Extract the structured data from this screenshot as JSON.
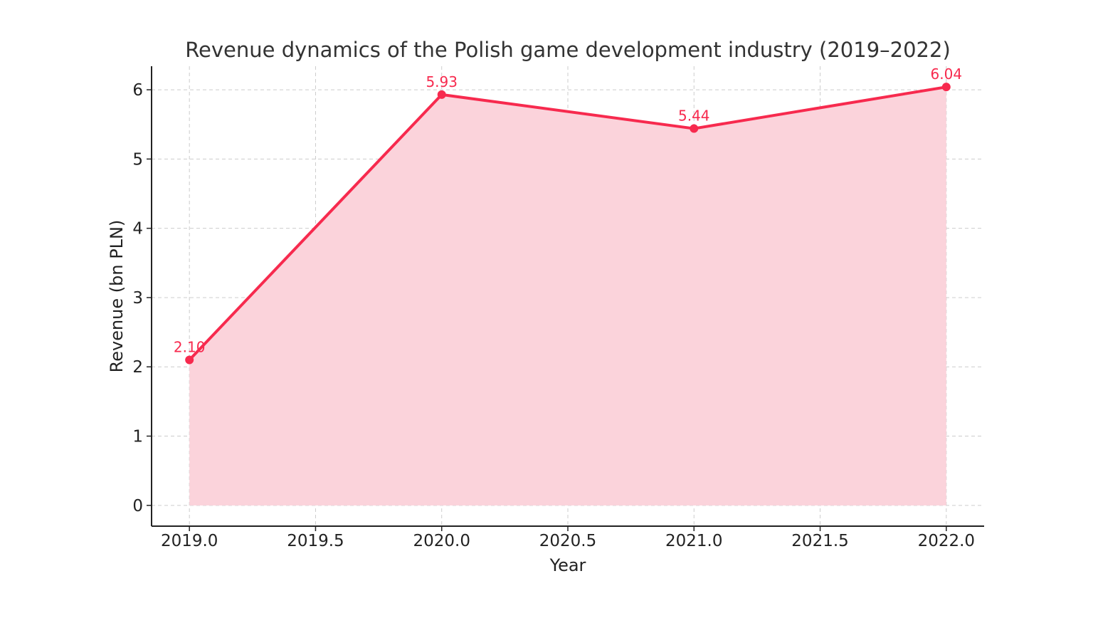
{
  "chart_data": {
    "type": "area",
    "title": "Revenue dynamics of the Polish game development industry (2019–2022)",
    "xlabel": "Year",
    "ylabel": "Revenue (bn PLN)",
    "x": [
      2019,
      2020,
      2021,
      2022
    ],
    "values": [
      2.1,
      5.93,
      5.44,
      6.04
    ],
    "data_labels": [
      "2.10",
      "5.93",
      "5.44",
      "6.04"
    ],
    "xlim": [
      2018.85,
      2022.15
    ],
    "ylim": [
      -0.3,
      6.34
    ],
    "xticks": [
      2019.0,
      2019.5,
      2020.0,
      2020.5,
      2021.0,
      2021.5,
      2022.0
    ],
    "xtick_labels": [
      "2019.0",
      "2019.5",
      "2020.0",
      "2020.5",
      "2021.0",
      "2021.5",
      "2022.0"
    ],
    "yticks": [
      0,
      1,
      2,
      3,
      4,
      5,
      6
    ],
    "ytick_labels": [
      "0",
      "1",
      "2",
      "3",
      "4",
      "5",
      "6"
    ],
    "grid": true,
    "colors": {
      "line": "#f72a4e",
      "fill": "#fbd3db",
      "text": "#333333"
    }
  }
}
